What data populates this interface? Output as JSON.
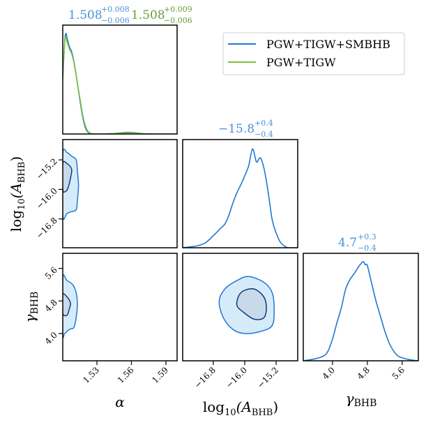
{
  "chart_data": {
    "type": "corner",
    "colors": {
      "primary": "#1f77d4",
      "secondary": "#7cbf3a",
      "fill_outer": "#d6ebfa",
      "fill_inner": "#c8d9ea",
      "contour_inner": "#0b3c78",
      "title_primary": "#4a90d9",
      "title_secondary": "#6b9a3a"
    },
    "parameters": [
      {
        "name": "alpha",
        "label": "α",
        "range": [
          1.5003,
          1.5997
        ],
        "ticks": [
          1.53,
          1.56,
          1.59
        ],
        "tick_labels": [
          "1.53",
          "1.56",
          "1.59"
        ]
      },
      {
        "name": "log10_A_BHB",
        "label_main": "log",
        "label_sub": "10",
        "label_paren": "(A",
        "label_paren_sub": "BHB",
        "label_close": ")",
        "range": [
          -17.58,
          -14.65
        ],
        "ticks": [
          -16.8,
          -16.0,
          -15.2
        ],
        "tick_labels": [
          "−16.8",
          "−16.0",
          "−15.2"
        ]
      },
      {
        "name": "gamma_BHB",
        "label_main": "γ",
        "label_sub": "BHB",
        "range": [
          3.33,
          5.97
        ],
        "ticks": [
          4.0,
          4.8,
          5.6
        ],
        "tick_labels": [
          "4.0",
          "4.8",
          "5.6"
        ]
      }
    ],
    "titles": [
      {
        "panel": "alpha",
        "series": "PGW+TIGW+SMBHB",
        "value": "1.508",
        "plus": "+0.008",
        "minus": "−0.006"
      },
      {
        "panel": "alpha",
        "series": "PGW+TIGW",
        "value": "1.508",
        "plus": "+0.009",
        "minus": "−0.006"
      },
      {
        "panel": "log10_A_BHB",
        "series": "PGW+TIGW+SMBHB",
        "value": "−15.8",
        "plus": "+0.4",
        "minus": "−0.4"
      },
      {
        "panel": "gamma_BHB",
        "series": "PGW+TIGW+SMBHB",
        "value": "4.7",
        "plus": "+0.3",
        "minus": "−0.4"
      }
    ],
    "legend": {
      "position": "top-right",
      "entries": [
        {
          "label": "PGW+TIGW+SMBHB",
          "color": "#1f77d4"
        },
        {
          "label": "PGW+TIGW",
          "color": "#7cbf3a"
        }
      ]
    },
    "marginals": {
      "alpha": {
        "x": [
          1.5003,
          1.502,
          1.503,
          1.504,
          1.506,
          1.508,
          1.51,
          1.512,
          1.514,
          1.516,
          1.518,
          1.52,
          1.522,
          1.524,
          1.526,
          1.53,
          1.535,
          1.545,
          1.555,
          1.56,
          1.565,
          1.575,
          1.5997
        ],
        "series": [
          {
            "name": "PGW+TIGW+SMBHB",
            "density": [
              0.55,
              0.92,
              1.0,
              0.96,
              0.87,
              0.82,
              0.72,
              0.58,
              0.43,
              0.28,
              0.15,
              0.06,
              0.02,
              0.005,
              0.0,
              0.0,
              0.0,
              0.005,
              0.015,
              0.015,
              0.01,
              0.0,
              0.0
            ]
          },
          {
            "name": "PGW+TIGW",
            "density": [
              0.6,
              0.9,
              0.97,
              0.92,
              0.85,
              0.8,
              0.71,
              0.58,
              0.44,
              0.3,
              0.17,
              0.08,
              0.03,
              0.01,
              0.0,
              0.0,
              0.0,
              0.005,
              0.01,
              0.012,
              0.008,
              0.0,
              0.0
            ]
          }
        ]
      },
      "log10_A_BHB": {
        "x": [
          -17.58,
          -17.2,
          -17.0,
          -16.8,
          -16.6,
          -16.5,
          -16.4,
          -16.3,
          -16.2,
          -16.1,
          -16.0,
          -15.9,
          -15.8,
          -15.7,
          -15.6,
          -15.5,
          -15.4,
          -15.3,
          -15.2,
          -15.1,
          -15.0,
          -14.9,
          -14.8,
          -14.65
        ],
        "series": [
          {
            "name": "PGW+TIGW+SMBHB",
            "density": [
              0.0,
              0.02,
              0.05,
              0.12,
              0.2,
              0.24,
              0.33,
              0.45,
              0.55,
              0.63,
              0.72,
              0.82,
              0.99,
              0.86,
              0.9,
              0.78,
              0.55,
              0.28,
              0.15,
              0.06,
              0.02,
              0.0,
              0.0,
              0.0
            ]
          }
        ]
      },
      "gamma_BHB": {
        "x": [
          3.33,
          3.6,
          3.8,
          3.9,
          4.0,
          4.1,
          4.2,
          4.3,
          4.4,
          4.5,
          4.6,
          4.7,
          4.75,
          4.8,
          4.9,
          5.0,
          5.1,
          5.2,
          5.3,
          5.4,
          5.5,
          5.6,
          5.8,
          5.97
        ],
        "series": [
          {
            "name": "PGW+TIGW+SMBHB",
            "density": [
              0.0,
              0.02,
              0.05,
              0.1,
              0.22,
              0.38,
              0.53,
              0.72,
              0.82,
              0.88,
              0.95,
              1.0,
              0.97,
              0.96,
              0.78,
              0.6,
              0.45,
              0.3,
              0.18,
              0.1,
              0.05,
              0.03,
              0.01,
              0.0
            ]
          }
        ]
      }
    },
    "contours": {
      "alpha_vs_log10_A_BHB": {
        "levels": [
          "1-sigma",
          "2-sigma"
        ],
        "outer": [
          [
            1.5003,
            -15.05
          ],
          [
            1.504,
            -15.0
          ],
          [
            1.508,
            -15.1
          ],
          [
            1.512,
            -15.2
          ],
          [
            1.513,
            -15.5
          ],
          [
            1.514,
            -15.9
          ],
          [
            1.513,
            -16.3
          ],
          [
            1.512,
            -16.55
          ],
          [
            1.508,
            -16.6
          ],
          [
            1.504,
            -16.65
          ],
          [
            1.5003,
            -16.7
          ]
        ],
        "inner": [
          [
            1.5003,
            -15.3
          ],
          [
            1.504,
            -15.3
          ],
          [
            1.508,
            -15.45
          ],
          [
            1.507,
            -15.7
          ],
          [
            1.505,
            -15.95
          ],
          [
            1.503,
            -16.05
          ],
          [
            1.5003,
            -16.0
          ]
        ]
      },
      "alpha_vs_gamma_BHB": {
        "outer": [
          [
            1.5003,
            5.35
          ],
          [
            1.504,
            5.3
          ],
          [
            1.509,
            5.2
          ],
          [
            1.512,
            5.0
          ],
          [
            1.513,
            4.7
          ],
          [
            1.512,
            4.4
          ],
          [
            1.51,
            4.15
          ],
          [
            1.506,
            4.1
          ],
          [
            1.502,
            4.0
          ],
          [
            1.5003,
            4.0
          ]
        ],
        "inner": [
          [
            1.5003,
            4.95
          ],
          [
            1.504,
            4.9
          ],
          [
            1.507,
            4.75
          ],
          [
            1.506,
            4.6
          ],
          [
            1.504,
            4.45
          ],
          [
            1.5003,
            4.5
          ]
        ]
      },
      "log10_A_BHB_vs_gamma_BHB": {
        "outer": [
          [
            -16.5,
            5.1
          ],
          [
            -16.2,
            5.3
          ],
          [
            -15.9,
            5.4
          ],
          [
            -15.5,
            5.25
          ],
          [
            -15.3,
            5.0
          ],
          [
            -15.25,
            4.6
          ],
          [
            -15.3,
            4.2
          ],
          [
            -15.6,
            4.05
          ],
          [
            -16.0,
            4.0
          ],
          [
            -16.3,
            4.1
          ],
          [
            -16.55,
            4.4
          ],
          [
            -16.65,
            4.8
          ]
        ],
        "inner": [
          [
            -16.1,
            5.0
          ],
          [
            -15.8,
            5.1
          ],
          [
            -15.55,
            4.95
          ],
          [
            -15.45,
            4.7
          ],
          [
            -15.5,
            4.4
          ],
          [
            -15.75,
            4.35
          ],
          [
            -16.0,
            4.5
          ],
          [
            -16.2,
            4.7
          ]
        ]
      }
    }
  }
}
